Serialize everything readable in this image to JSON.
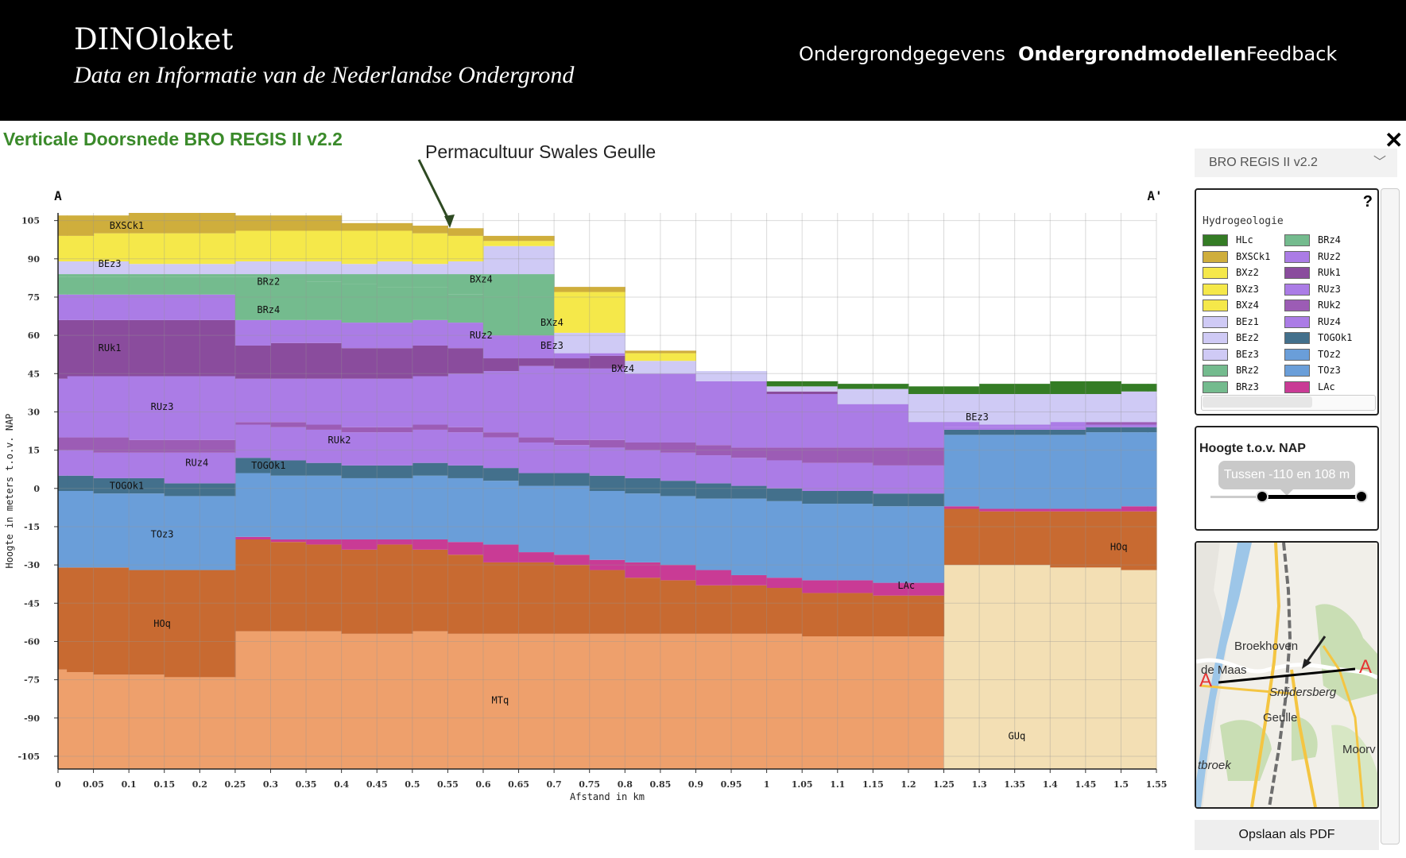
{
  "header": {
    "title": "DINOloket",
    "subtitle": "Data en Informatie van de Nederlandse Ondergrond",
    "nav": [
      "Ondergrondgegevens",
      "Ondergrondmodellen",
      "Feedback"
    ],
    "active_nav": "Ondergrondmodellen"
  },
  "page": {
    "title": "Verticale Doorsnede BRO REGIS II v2.2",
    "annotation": "Permacultuur Swales Geulle",
    "close_symbol": "✕"
  },
  "sidebar": {
    "model_select": "BRO REGIS II v2.2",
    "help_symbol": "?",
    "legend_title": "Hydrogeologie",
    "legend_items": [
      {
        "code": "HLc",
        "color": "#347c25"
      },
      {
        "code": "BXSCk1",
        "color": "#cfae3c"
      },
      {
        "code": "BXz2",
        "color": "#f5e84a"
      },
      {
        "code": "BXz3",
        "color": "#f5e84a"
      },
      {
        "code": "BXz4",
        "color": "#f5e84a"
      },
      {
        "code": "BEz1",
        "color": "#cfcaf5"
      },
      {
        "code": "BEz2",
        "color": "#cfcaf5"
      },
      {
        "code": "BEz3",
        "color": "#cfcaf5"
      },
      {
        "code": "BRz2",
        "color": "#74bb8e"
      },
      {
        "code": "BRz3",
        "color": "#74bb8e"
      },
      {
        "code": "BRz4",
        "color": "#74bb8e"
      },
      {
        "code": "RUz2",
        "color": "#ab7ce6"
      },
      {
        "code": "RUk1",
        "color": "#8a4c9d"
      },
      {
        "code": "RUz3",
        "color": "#ab7ce6"
      },
      {
        "code": "RUk2",
        "color": "#9c5cb5"
      },
      {
        "code": "RUz4",
        "color": "#ab7ce6"
      },
      {
        "code": "TOGOk1",
        "color": "#43708c"
      },
      {
        "code": "TOz2",
        "color": "#6a9ed9"
      },
      {
        "code": "TOz3",
        "color": "#6a9ed9"
      },
      {
        "code": "LAc",
        "color": "#c93b95"
      }
    ],
    "height_title": "Hoogte t.o.v. NAP",
    "height_range_text": "Tussen -110 en 108 m",
    "height_range": [
      -110,
      108
    ],
    "map_labels": [
      "Broekhoven",
      "de Maas",
      "A",
      "A",
      "Snijdersberg",
      "Geulle",
      "Moorv",
      "tbroek"
    ],
    "pdf_button": "Opslaan als PDF"
  },
  "chart_data": {
    "type": "area",
    "title": "",
    "xlabel": "Afstand in km",
    "ylabel": "Hoogte in meters t.o.v. NAP",
    "section_start_label": "A",
    "section_end_label": "A'",
    "xlim": [
      0,
      1.55
    ],
    "ylim": [
      -110,
      108
    ],
    "x_ticks": [
      0,
      0.05,
      0.1,
      0.15,
      0.2,
      0.25,
      0.3,
      0.35,
      0.4,
      0.45,
      0.5,
      0.55,
      0.6,
      0.65,
      0.7,
      0.75,
      0.8,
      0.85,
      0.9,
      0.95,
      1,
      1.05,
      1.1,
      1.15,
      1.2,
      1.25,
      1.3,
      1.35,
      1.4,
      1.45,
      1.5,
      1.55
    ],
    "y_ticks": [
      105,
      90,
      75,
      60,
      45,
      30,
      15,
      0,
      -15,
      -30,
      -45,
      -60,
      -75,
      -90,
      -105
    ],
    "grid": true,
    "x": [
      0,
      0.025,
      0.075,
      0.125,
      0.175,
      0.225,
      0.275,
      0.325,
      0.375,
      0.425,
      0.475,
      0.525,
      0.575,
      0.625,
      0.675,
      0.725,
      0.775,
      0.825,
      0.875,
      0.925,
      0.975,
      1.025,
      1.075,
      1.125,
      1.175,
      1.225,
      1.275,
      1.325,
      1.375,
      1.425,
      1.475,
      1.525,
      1.55
    ],
    "series": [
      {
        "name": "MTq",
        "color": "#eea06c",
        "values": [
          -110,
          -110,
          -110,
          -110,
          -110,
          -110,
          -110,
          -110,
          -110,
          -110,
          -110,
          -110,
          -110,
          -110,
          -110,
          -110,
          -110,
          -110,
          -110,
          -110,
          -110,
          -110,
          -110,
          -110,
          -110,
          -110,
          -110,
          -110,
          -110,
          -110,
          -110,
          -110,
          -110
        ]
      },
      {
        "name": "GUq",
        "color": "#f3dfb4",
        "values": [
          null,
          null,
          null,
          null,
          null,
          null,
          null,
          null,
          null,
          null,
          null,
          null,
          null,
          null,
          null,
          null,
          null,
          null,
          null,
          null,
          null,
          null,
          null,
          null,
          null,
          null,
          -110,
          -110,
          -110,
          -110,
          -110,
          -110,
          -110
        ]
      },
      {
        "name": "HOq",
        "color": "#c86a31",
        "values": [
          -71,
          -72,
          -73,
          -73,
          -74,
          -74,
          -56,
          -56,
          -56,
          -57,
          -57,
          -56,
          -57,
          -57,
          -57,
          -57,
          -57,
          -57,
          -57,
          -57,
          -57,
          -57,
          -58,
          -58,
          -58,
          -58,
          -30,
          -30,
          -30,
          -31,
          -31,
          -32,
          -32
        ]
      },
      {
        "name": "LAc",
        "color": "#c93b95",
        "values": [
          null,
          null,
          null,
          null,
          null,
          null,
          -20,
          -21,
          -22,
          -24,
          -22,
          -24,
          -26,
          -29,
          -29,
          -30,
          -32,
          -35,
          -36,
          -38,
          -38,
          -39,
          -41,
          -41,
          -42,
          -42,
          -8,
          -9,
          -9,
          -9,
          -9,
          -9,
          -9
        ]
      },
      {
        "name": "TOz3",
        "color": "#6a9ed9",
        "values": [
          -31,
          -31,
          -31,
          -32,
          -32,
          -32,
          -19,
          -20,
          -20,
          -20,
          -20,
          -20,
          -21,
          -22,
          -25,
          -26,
          -28,
          -29,
          -30,
          -32,
          -34,
          -35,
          -36,
          -36,
          -37,
          -37,
          -7,
          -8,
          -8,
          -8,
          -8,
          -7,
          -7
        ]
      },
      {
        "name": "TOGOk1",
        "color": "#43708c",
        "values": [
          -1,
          -1,
          -2,
          -2,
          -3,
          -3,
          6,
          5,
          5,
          4,
          4,
          5,
          4,
          3,
          1,
          1,
          -1,
          -2,
          -3,
          -4,
          -4,
          -5,
          -6,
          -6,
          -7,
          -7,
          21,
          21,
          21,
          21,
          22,
          22,
          22
        ]
      },
      {
        "name": "RUz4",
        "color": "#ab7ce6",
        "values": [
          5,
          5,
          4,
          4,
          2,
          2,
          12,
          11,
          10,
          9,
          9,
          10,
          9,
          8,
          6,
          6,
          5,
          4,
          3,
          2,
          1,
          0,
          -1,
          -1,
          -2,
          -2,
          23,
          23,
          23,
          23,
          24,
          24,
          24
        ]
      },
      {
        "name": "RUk2",
        "color": "#9c5cb5",
        "values": [
          15,
          15,
          14,
          14,
          14,
          14,
          25,
          24,
          23,
          22,
          22,
          23,
          22,
          20,
          18,
          17,
          16,
          15,
          14,
          13,
          12,
          11,
          10,
          10,
          9,
          9,
          24,
          24,
          24,
          24,
          25,
          25,
          25
        ]
      },
      {
        "name": "RUz3",
        "color": "#ab7ce6",
        "values": [
          20,
          20,
          20,
          19,
          19,
          19,
          26,
          26,
          25,
          24,
          24,
          25,
          24,
          22,
          20,
          19,
          19,
          18,
          18,
          17,
          16,
          16,
          16,
          16,
          16,
          16,
          24,
          24,
          24,
          24,
          26,
          26,
          26
        ]
      },
      {
        "name": "RUk1",
        "color": "#8a4c9d",
        "values": [
          43,
          44,
          44,
          44,
          44,
          44,
          43,
          43,
          43,
          43,
          43,
          44,
          45,
          46,
          48,
          47,
          47,
          45,
          45,
          42,
          42,
          37,
          37,
          35,
          35,
          34,
          36,
          36,
          36,
          36,
          36,
          36,
          36
        ]
      },
      {
        "name": "RUz2",
        "color": "#ab7ce6",
        "values": [
          66,
          66,
          66,
          66,
          66,
          66,
          56,
          57,
          57,
          55,
          55,
          56,
          55,
          51,
          51,
          51,
          52,
          null,
          null,
          null,
          null,
          null,
          null,
          null,
          null,
          null,
          null,
          null,
          null,
          null,
          null,
          null,
          null
        ]
      },
      {
        "name": "BRz4",
        "color": "#74bb8e",
        "values": [
          76,
          76,
          76,
          76,
          76,
          76,
          66,
          66,
          66,
          65,
          65,
          66,
          65,
          60,
          60,
          null,
          null,
          null,
          null,
          null,
          null,
          null,
          null,
          null,
          null,
          null,
          null,
          null,
          null,
          null,
          null,
          null,
          null
        ]
      },
      {
        "name": "BRz2",
        "color": "#74bb8e",
        "values": [
          83,
          83,
          83,
          83,
          83,
          83,
          83,
          82,
          81,
          80,
          79,
          79,
          76,
          75,
          75,
          null,
          null,
          null,
          null,
          null,
          null,
          null,
          null,
          null,
          null,
          null,
          null,
          null,
          null,
          null,
          null,
          null,
          null
        ]
      },
      {
        "name": "BEz3",
        "color": "#cfcaf5",
        "values": [
          84,
          84,
          84,
          84,
          84,
          84,
          84,
          84,
          84,
          84,
          84,
          84,
          84,
          84,
          84,
          53,
          53,
          45,
          45,
          42,
          42,
          38,
          38,
          33,
          33,
          26,
          26,
          25,
          25,
          26,
          26,
          26,
          26
        ]
      },
      {
        "name": "BXz4",
        "color": "#f5e84a",
        "values": [
          89,
          89,
          89,
          88,
          88,
          88,
          89,
          89,
          89,
          88,
          89,
          88,
          89,
          95,
          95,
          61,
          61,
          50,
          50,
          null,
          null,
          null,
          null,
          null,
          null,
          null,
          null,
          null,
          null,
          null,
          null,
          null,
          null
        ]
      },
      {
        "name": "BXSCk1",
        "color": "#cfae3c",
        "values": [
          99,
          99,
          100,
          100,
          100,
          100,
          101,
          101,
          101,
          101,
          101,
          100,
          99,
          97,
          97,
          77,
          77,
          53,
          53,
          null,
          null,
          null,
          null,
          null,
          null,
          null,
          null,
          null,
          null,
          null,
          null,
          null,
          null
        ]
      },
      {
        "name": "HLc",
        "color": "#347c25",
        "values": [
          null,
          null,
          null,
          null,
          null,
          null,
          null,
          null,
          null,
          null,
          null,
          null,
          null,
          null,
          null,
          null,
          null,
          null,
          null,
          null,
          null,
          40,
          40,
          39,
          39,
          37,
          37,
          37,
          37,
          37,
          37,
          38,
          38
        ]
      }
    ],
    "top_surface": [
      107,
      107,
      107,
      108,
      108,
      108,
      107,
      107,
      107,
      104,
      104,
      103,
      102,
      99,
      99,
      79,
      79,
      54,
      54,
      46,
      46,
      42,
      42,
      41,
      41,
      40,
      40,
      41,
      41,
      42,
      42,
      41,
      41
    ],
    "area_labels": [
      {
        "text": "BXSCk1",
        "x": 0.097,
        "y": 103
      },
      {
        "text": "BEz3",
        "x": 0.073,
        "y": 88
      },
      {
        "text": "BRz2",
        "x": 0.297,
        "y": 81
      },
      {
        "text": "BRz4",
        "x": 0.297,
        "y": 70
      },
      {
        "text": "RUk1",
        "x": 0.073,
        "y": 55
      },
      {
        "text": "RUz3",
        "x": 0.147,
        "y": 32
      },
      {
        "text": "RUz4",
        "x": 0.196,
        "y": 10
      },
      {
        "text": "TOGOk1",
        "x": 0.297,
        "y": 9
      },
      {
        "text": "RUk2",
        "x": 0.397,
        "y": 19
      },
      {
        "text": "TOGOk1",
        "x": 0.097,
        "y": 1
      },
      {
        "text": "TOz3",
        "x": 0.147,
        "y": -18
      },
      {
        "text": "HOq",
        "x": 0.147,
        "y": -53
      },
      {
        "text": "BXz4",
        "x": 0.597,
        "y": 82
      },
      {
        "text": "RUz2",
        "x": 0.597,
        "y": 60
      },
      {
        "text": "BXz4",
        "x": 0.697,
        "y": 65
      },
      {
        "text": "BEz3",
        "x": 0.697,
        "y": 56
      },
      {
        "text": "BXz4",
        "x": 0.797,
        "y": 47
      },
      {
        "text": "BEz3",
        "x": 1.297,
        "y": 28
      },
      {
        "text": "LAc",
        "x": 1.197,
        "y": -38
      },
      {
        "text": "HOq",
        "x": 1.497,
        "y": -23
      },
      {
        "text": "MTq",
        "x": 0.624,
        "y": -83
      },
      {
        "text": "GUq",
        "x": 1.353,
        "y": -97
      }
    ]
  }
}
